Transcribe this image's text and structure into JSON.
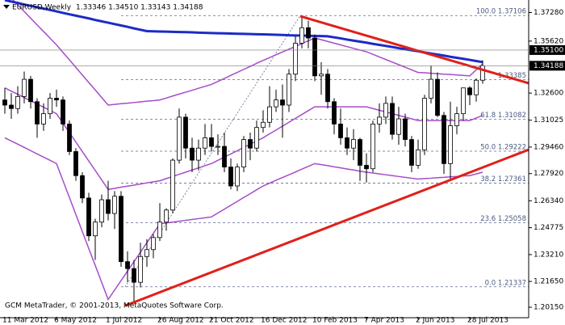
{
  "chart_data": {
    "type": "candlestick",
    "title": "EURUSD,Weekly",
    "subtitle": "1.33346 1.34510 1.33143 1.34188",
    "footer": "GCM MetaTrader, © 2001-2013, MetaQuotes Software Corp.",
    "up_color": "#ffffff",
    "down_color": "#000000",
    "categories": [
      "11 Mar 2012",
      null,
      null,
      null,
      null,
      null,
      null,
      null,
      "6 May 2012",
      null,
      null,
      null,
      null,
      null,
      null,
      null,
      "1 Jul 2012",
      null,
      null,
      null,
      null,
      null,
      null,
      null,
      "26 Aug 2012",
      null,
      null,
      null,
      null,
      null,
      null,
      null,
      "21 Oct 2012",
      null,
      null,
      null,
      null,
      null,
      null,
      null,
      "16 Dec 2012",
      null,
      null,
      null,
      null,
      null,
      null,
      null,
      "10 Feb 2013",
      null,
      null,
      null,
      null,
      null,
      null,
      null,
      "7 Apr 2013",
      null,
      null,
      null,
      null,
      null,
      null,
      null,
      "2 Jun 2013",
      null,
      null,
      null,
      null,
      null,
      null,
      null,
      "28 Jul 2013",
      null,
      null
    ],
    "open": [
      1.322,
      1.319,
      1.317,
      1.324,
      1.334,
      1.321,
      1.308,
      1.314,
      1.323,
      1.322,
      1.308,
      1.292,
      1.278,
      1.265,
      1.243,
      1.251,
      1.264,
      1.256,
      1.266,
      1.228,
      1.224,
      1.216,
      1.231,
      1.235,
      1.242,
      1.251,
      1.258,
      1.287,
      1.312,
      1.294,
      1.287,
      1.294,
      1.3,
      1.295,
      1.295,
      1.283,
      1.272,
      1.283,
      1.299,
      1.294,
      1.306,
      1.309,
      1.318,
      1.322,
      1.319,
      1.337,
      1.355,
      1.364,
      1.358,
      1.336,
      1.337,
      1.321,
      1.308,
      1.3,
      1.294,
      1.299,
      1.284,
      1.282,
      1.308,
      1.312,
      1.32,
      1.302,
      1.311,
      1.299,
      1.284,
      1.293,
      1.323,
      1.334,
      1.313,
      1.285,
      1.307,
      1.314,
      1.329,
      1.325,
      1.33346
    ],
    "high": [
      1.329,
      1.326,
      1.33,
      1.3385,
      1.336,
      1.323,
      1.32,
      1.326,
      1.328,
      1.324,
      1.31,
      1.294,
      1.28,
      1.268,
      1.253,
      1.267,
      1.275,
      1.269,
      1.269,
      1.234,
      1.229,
      1.239,
      1.241,
      1.244,
      1.262,
      1.259,
      1.288,
      1.317,
      1.314,
      1.3,
      1.299,
      1.308,
      1.308,
      1.302,
      1.303,
      1.288,
      1.285,
      1.301,
      1.303,
      1.31,
      1.316,
      1.33,
      1.328,
      1.331,
      1.34,
      1.359,
      1.371,
      1.368,
      1.36,
      1.344,
      1.34,
      1.323,
      1.317,
      1.306,
      1.305,
      1.3,
      1.291,
      1.31,
      1.32,
      1.324,
      1.324,
      1.318,
      1.314,
      1.301,
      1.299,
      1.325,
      1.342,
      1.338,
      1.315,
      1.321,
      1.318,
      1.329,
      1.33,
      1.3345,
      1.3451
    ],
    "low": [
      1.314,
      1.311,
      1.314,
      1.32,
      1.317,
      1.3,
      1.304,
      1.311,
      1.318,
      1.304,
      1.29,
      1.275,
      1.262,
      1.24,
      1.229,
      1.248,
      1.252,
      1.247,
      1.225,
      1.216,
      1.204,
      1.213,
      1.225,
      1.23,
      1.24,
      1.246,
      1.256,
      1.285,
      1.288,
      1.28,
      1.281,
      1.29,
      1.292,
      1.29,
      1.28,
      1.27,
      1.269,
      1.28,
      1.287,
      1.292,
      1.303,
      1.306,
      1.315,
      1.3,
      1.315,
      1.333,
      1.352,
      1.352,
      1.333,
      1.325,
      1.317,
      1.302,
      1.296,
      1.29,
      1.287,
      1.275,
      1.274,
      1.28,
      1.303,
      1.308,
      1.299,
      1.296,
      1.295,
      1.28,
      1.282,
      1.29,
      1.32,
      1.312,
      1.279,
      1.276,
      1.302,
      1.31,
      1.319,
      1.321,
      1.33143
    ],
    "close": [
      1.319,
      1.317,
      1.324,
      1.334,
      1.321,
      1.308,
      1.314,
      1.323,
      1.322,
      1.308,
      1.292,
      1.278,
      1.265,
      1.243,
      1.251,
      1.264,
      1.256,
      1.266,
      1.228,
      1.224,
      1.216,
      1.231,
      1.235,
      1.242,
      1.251,
      1.258,
      1.287,
      1.312,
      1.294,
      1.287,
      1.294,
      1.3,
      1.295,
      1.295,
      1.283,
      1.272,
      1.283,
      1.299,
      1.294,
      1.306,
      1.309,
      1.318,
      1.322,
      1.319,
      1.337,
      1.355,
      1.364,
      1.358,
      1.336,
      1.337,
      1.321,
      1.308,
      1.3,
      1.294,
      1.299,
      1.284,
      1.282,
      1.308,
      1.312,
      1.32,
      1.302,
      1.311,
      1.299,
      1.284,
      1.293,
      1.323,
      1.334,
      1.313,
      1.285,
      1.307,
      1.314,
      1.329,
      1.325,
      1.33346,
      1.34188
    ],
    "ma": {
      "color": "#1c2bc8",
      "values": [
        1.38,
        1.3792,
        1.3784,
        1.3775,
        1.3767,
        1.3759,
        1.3751,
        1.3743,
        1.3735,
        1.3726,
        1.3718,
        1.371,
        1.3702,
        1.3694,
        1.3685,
        1.3677,
        1.3669,
        1.3661,
        1.3653,
        1.3645,
        1.3636,
        1.3628,
        1.362,
        1.3619,
        1.3618,
        1.3617,
        1.3616,
        1.3615,
        1.3614,
        1.3613,
        1.3611,
        1.361,
        1.3609,
        1.3608,
        1.3607,
        1.3606,
        1.3605,
        1.3604,
        1.3603,
        1.3602,
        1.3601,
        1.36,
        1.3599,
        1.3598,
        1.3596,
        1.3595,
        1.3594,
        1.3593,
        1.3592,
        1.3591,
        1.359,
        1.3584,
        1.3578,
        1.3571,
        1.3565,
        1.3559,
        1.3553,
        1.3546,
        1.354,
        1.3534,
        1.3528,
        1.3521,
        1.3515,
        1.3509,
        1.3503,
        1.3496,
        1.349,
        1.3484,
        1.3478,
        1.3471,
        1.3465,
        1.3459,
        1.3453,
        1.3446,
        1.344
      ]
    },
    "bands": {
      "color": "#a64cc8",
      "upper": [
        1.385,
        1.3811,
        1.3773,
        1.3734,
        1.3695,
        1.3656,
        1.3618,
        1.3579,
        1.354,
        1.3496,
        1.3453,
        1.3409,
        1.3365,
        1.3321,
        1.3278,
        1.3234,
        1.319,
        1.3194,
        1.3198,
        1.3201,
        1.3205,
        1.3209,
        1.3213,
        1.3216,
        1.322,
        1.3231,
        1.3243,
        1.3254,
        1.3265,
        1.3276,
        1.3288,
        1.3299,
        1.331,
        1.3328,
        1.3345,
        1.3363,
        1.338,
        1.3398,
        1.3415,
        1.3433,
        1.345,
        1.3466,
        1.3483,
        1.3499,
        1.3515,
        1.3531,
        1.3548,
        1.3564,
        1.358,
        1.357,
        1.356,
        1.355,
        1.354,
        1.353,
        1.352,
        1.351,
        1.35,
        1.3485,
        1.347,
        1.3455,
        1.344,
        1.3425,
        1.341,
        1.3395,
        1.338,
        1.3378,
        1.3375,
        1.3373,
        1.337,
        1.3368,
        1.3365,
        1.3363,
        1.336,
        1.3395,
        1.343
      ],
      "middle": [
        1.329,
        1.3271,
        1.3253,
        1.3234,
        1.3215,
        1.3196,
        1.3178,
        1.3159,
        1.314,
        1.3085,
        1.303,
        1.2975,
        1.292,
        1.2865,
        1.281,
        1.2755,
        1.27,
        1.2706,
        1.2713,
        1.2719,
        1.2725,
        1.2731,
        1.2738,
        1.2744,
        1.275,
        1.2763,
        1.2775,
        1.2788,
        1.28,
        1.2813,
        1.2825,
        1.2838,
        1.285,
        1.2869,
        1.2888,
        1.2906,
        1.2925,
        1.2944,
        1.2963,
        1.2981,
        1.3,
        1.3023,
        1.3045,
        1.3068,
        1.309,
        1.3113,
        1.3135,
        1.3158,
        1.318,
        1.318,
        1.318,
        1.318,
        1.318,
        1.318,
        1.318,
        1.318,
        1.318,
        1.317,
        1.316,
        1.315,
        1.314,
        1.313,
        1.312,
        1.311,
        1.31,
        1.31,
        1.31,
        1.31,
        1.31,
        1.31,
        1.31,
        1.31,
        1.31,
        1.3115,
        1.313
      ],
      "lower": [
        1.3,
        1.2981,
        1.2963,
        1.2944,
        1.2925,
        1.2906,
        1.2888,
        1.2869,
        1.285,
        1.2751,
        1.2653,
        1.2554,
        1.2455,
        1.2356,
        1.2258,
        1.2159,
        1.206,
        1.2115,
        1.217,
        1.2225,
        1.228,
        1.2335,
        1.239,
        1.2445,
        1.25,
        1.2505,
        1.251,
        1.2515,
        1.252,
        1.2525,
        1.253,
        1.2535,
        1.254,
        1.2563,
        1.2585,
        1.2608,
        1.263,
        1.2653,
        1.2675,
        1.2698,
        1.272,
        1.2736,
        1.2753,
        1.2769,
        1.2785,
        1.2801,
        1.2818,
        1.2834,
        1.285,
        1.2844,
        1.2838,
        1.2831,
        1.2825,
        1.2819,
        1.2813,
        1.2806,
        1.28,
        1.2795,
        1.279,
        1.2785,
        1.278,
        1.2775,
        1.277,
        1.2765,
        1.276,
        1.2763,
        1.2765,
        1.2768,
        1.277,
        1.2773,
        1.2775,
        1.2778,
        1.278,
        1.279,
        1.28
      ]
    },
    "trendlines": {
      "color": "#e0201a",
      "lines": [
        {
          "values": [
            1.3707,
            1.3317
          ]
        },
        {
          "values": [
            1.2024,
            1.2931
          ]
        }
      ]
    },
    "fib_color": "#5a6a90",
    "fib_levels": [
      {
        "value": 1.37106,
        "label": "100.0 1.37106"
      },
      {
        "value": 1.33385,
        "label": "1.33385"
      },
      {
        "value": 1.31082,
        "label": "61.8 1.31082"
      },
      {
        "value": 1.29222,
        "label": "50.0 1.29222"
      },
      {
        "value": 1.27361,
        "label": "38.2 1.27361"
      },
      {
        "value": 1.25058,
        "label": "23.6 1.25058"
      },
      {
        "value": 1.21337,
        "label": "0.0 1.21337"
      }
    ],
    "price_lines": [
      {
        "value": 1.351,
        "label": "1.35100"
      },
      {
        "value": 1.34188,
        "label": "1.34188"
      }
    ],
    "ylim": [
      1.1954,
      1.3801
    ],
    "yticks": [
      {
        "value": 1.3728,
        "label": "1.37280"
      },
      {
        "value": 1.3562,
        "label": "1.35620"
      },
      {
        "value": 1.326,
        "label": "1.32600"
      },
      {
        "value": 1.31025,
        "label": "1.31025"
      },
      {
        "value": 1.2946,
        "label": "1.29460"
      },
      {
        "value": 1.2792,
        "label": "1.27920"
      },
      {
        "value": 1.2634,
        "label": "1.26340"
      },
      {
        "value": 1.24775,
        "label": "1.24775"
      },
      {
        "value": 1.2321,
        "label": "1.23210"
      },
      {
        "value": 1.2165,
        "label": "1.21650"
      },
      {
        "value": 1.2015,
        "label": "1.20150"
      }
    ]
  }
}
